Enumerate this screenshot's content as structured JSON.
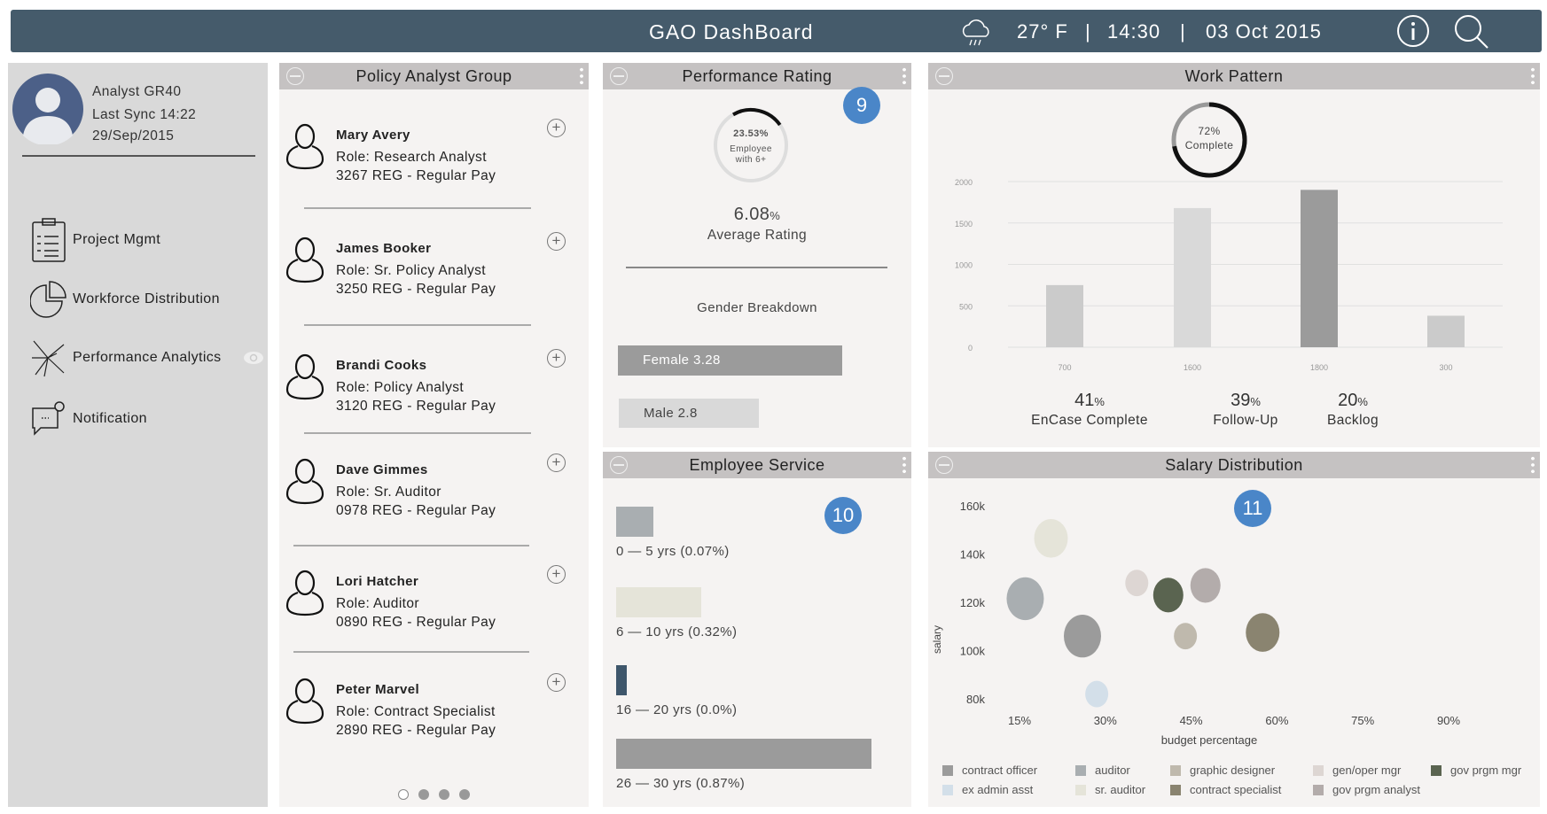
{
  "header": {
    "title": "GAO DashBoard",
    "weather_icon": "rain-cloud-icon",
    "temperature": "27° F",
    "sep1": "|",
    "time": "14:30",
    "sep2": "|",
    "date": "03 Oct 2015",
    "info_icon": "info-icon",
    "search_icon": "search-icon",
    "bg_color": "#455b6b"
  },
  "sidebar": {
    "user": {
      "name": "Analyst GR40",
      "last_sync": "Last Sync 14:22",
      "date": "29/Sep/2015"
    },
    "items": [
      {
        "label": "Project Mgmt",
        "icon": "clipboard-icon"
      },
      {
        "label": "Workforce Distribution",
        "icon": "pie-chart-icon"
      },
      {
        "label": "Performance Analytics",
        "icon": "network-icon"
      },
      {
        "label": "Notification",
        "icon": "chat-notification-icon"
      }
    ]
  },
  "policy_group": {
    "title": "Policy Analyst Group",
    "people": [
      {
        "name": "Mary Avery",
        "role": "Role: Research Analyst",
        "pay": "3267 REG - Regular Pay"
      },
      {
        "name": "James Booker",
        "role": "Role: Sr. Policy Analyst",
        "pay": "3250 REG - Regular Pay"
      },
      {
        "name": "Brandi Cooks",
        "role": "Role: Policy Analyst",
        "pay": "3120 REG - Regular Pay"
      },
      {
        "name": "Dave Gimmes",
        "role": "Role: Sr. Auditor",
        "pay": "0978 REG - Regular Pay"
      },
      {
        "name": "Lori Hatcher",
        "role": "Role: Auditor",
        "pay": "0890 REG - Regular Pay"
      },
      {
        "name": "Peter Marvel",
        "role": "Role: Contract Specialist",
        "pay": "2890 REG - Regular Pay"
      }
    ],
    "pages": 4,
    "current_page": 1
  },
  "performance": {
    "title": "Performance Rating",
    "badge": "9",
    "gauge_pct": "23.53%",
    "gauge_value": 23.53,
    "gauge_label1": "Employee",
    "gauge_label2": "with 6+",
    "avg": "6.08",
    "avg_unit": "%",
    "avg_label": "Average Rating",
    "gender_title": "Gender  Breakdown",
    "female": {
      "label": "Female 3.28",
      "value": 3.28
    },
    "male": {
      "label": "Male 2.8",
      "value": 2.8
    }
  },
  "employee_service": {
    "title": "Employee Service",
    "badge": "10",
    "rows": [
      {
        "label": "0 — 5 yrs (0.07%)",
        "value": 0.07,
        "color": "#a9aeb1"
      },
      {
        "label": "6 — 10 yrs (0.32%)",
        "value": 0.32,
        "color": "#e5e4d9"
      },
      {
        "label": "16 — 20 yrs (0.0%)",
        "value": 0.0,
        "color": "#3e566b"
      },
      {
        "label": "26 — 30 yrs (0.87%)",
        "value": 0.87,
        "color": "#9b9b9b"
      }
    ]
  },
  "work_pattern": {
    "title": "Work Pattern",
    "ring_pct": "72%",
    "ring_value": 72,
    "ring_label": "Complete",
    "stats": [
      {
        "value": "41",
        "unit": "%",
        "label": "EnCase Complete"
      },
      {
        "value": "39",
        "unit": "%",
        "label": "Follow-Up"
      },
      {
        "value": "20",
        "unit": "%",
        "label": "Backlog"
      }
    ]
  },
  "chart_data": [
    {
      "type": "bar",
      "title": "Work Pattern",
      "categories": [
        "700",
        "1600",
        "1800",
        "300"
      ],
      "values": [
        750,
        1680,
        1900,
        380
      ],
      "colors": [
        "#cbcbcb",
        "#d9d9d9",
        "#9b9b9b",
        "#cbcbcb"
      ],
      "ylim": [
        0,
        2000
      ],
      "yticks": [
        "2000",
        "1500",
        "1000",
        "500",
        "0"
      ],
      "grid": true
    },
    {
      "type": "scatter",
      "title": "Salary Distribution",
      "badge": "11",
      "xlabel": "budget percentage",
      "ylabel": "salary",
      "xlim": [
        7,
        102
      ],
      "ylim": [
        75,
        165
      ],
      "xticks": [
        {
          "v": 15,
          "label": "15%"
        },
        {
          "v": 30,
          "label": "30%"
        },
        {
          "v": 45,
          "label": "45%"
        },
        {
          "v": 60,
          "label": "60%"
        },
        {
          "v": 75,
          "label": "75%"
        },
        {
          "v": 90,
          "label": "90%"
        }
      ],
      "yticks": [
        {
          "v": 160,
          "label": "160k"
        },
        {
          "v": 140,
          "label": "140k"
        },
        {
          "v": 120,
          "label": "120k"
        },
        {
          "v": 100,
          "label": "100k"
        },
        {
          "v": 80,
          "label": "80k"
        }
      ],
      "series": [
        {
          "name": "contract officer",
          "color": "#9b9b9b",
          "x": 26,
          "y": 106,
          "size": 21
        },
        {
          "name": "auditor",
          "color": "#a9aeb1",
          "x": 16,
          "y": 121.5,
          "size": 21
        },
        {
          "name": "graphic designer",
          "color": "#bfb9ad",
          "x": 44,
          "y": 106,
          "size": 13
        },
        {
          "name": "gen/oper mgr",
          "color": "#ddd6d3",
          "x": 35.5,
          "y": 128,
          "size": 13
        },
        {
          "name": "gov prgm mgr",
          "color": "#5a6450",
          "x": 41,
          "y": 123,
          "size": 17
        },
        {
          "name": "ex admin asst",
          "color": "#d3dfe9",
          "x": 28.5,
          "y": 82,
          "size": 13
        },
        {
          "name": "sr. auditor",
          "color": "#e5e4d9",
          "x": 20.5,
          "y": 146.5,
          "size": 19
        },
        {
          "name": "contract specialist",
          "color": "#8a8470",
          "x": 57.5,
          "y": 107.5,
          "size": 19
        },
        {
          "name": "gov prgm analyst",
          "color": "#b3acab",
          "x": 47.5,
          "y": 127,
          "size": 17
        }
      ]
    }
  ]
}
